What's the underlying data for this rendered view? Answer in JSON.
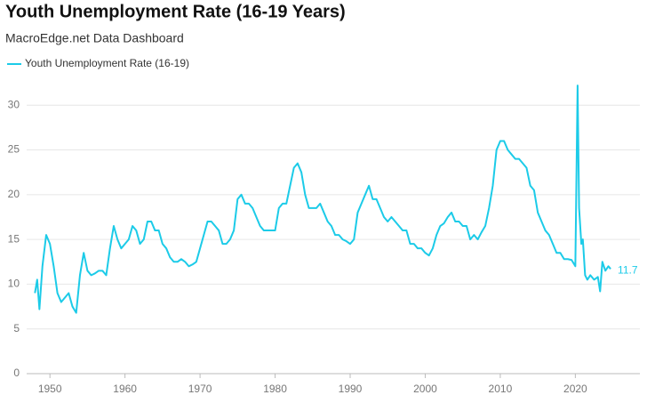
{
  "chart_data": {
    "type": "line",
    "title": "Youth Unemployment Rate (16-19 Years)",
    "subtitle": "MacroEdge.net Data Dashboard",
    "x": [
      1948.0,
      1948.3,
      1948.6,
      1949.0,
      1949.5,
      1950.0,
      1950.5,
      1951.0,
      1951.5,
      1952.0,
      1952.5,
      1953.0,
      1953.5,
      1954.0,
      1954.5,
      1955.0,
      1955.5,
      1956.0,
      1956.5,
      1957.0,
      1957.5,
      1958.0,
      1958.5,
      1959.0,
      1959.5,
      1960.0,
      1960.5,
      1961.0,
      1961.5,
      1962.0,
      1962.5,
      1963.0,
      1963.5,
      1964.0,
      1964.5,
      1965.0,
      1965.5,
      1966.0,
      1966.5,
      1967.0,
      1967.5,
      1968.0,
      1968.5,
      1969.0,
      1969.5,
      1970.0,
      1970.5,
      1971.0,
      1971.5,
      1972.0,
      1972.5,
      1973.0,
      1973.5,
      1974.0,
      1974.5,
      1975.0,
      1975.5,
      1976.0,
      1976.5,
      1977.0,
      1977.5,
      1978.0,
      1978.5,
      1979.0,
      1979.5,
      1980.0,
      1980.5,
      1981.0,
      1981.5,
      1982.0,
      1982.5,
      1983.0,
      1983.5,
      1984.0,
      1984.5,
      1985.0,
      1985.5,
      1986.0,
      1986.5,
      1987.0,
      1987.5,
      1988.0,
      1988.5,
      1989.0,
      1989.5,
      1990.0,
      1990.5,
      1991.0,
      1991.5,
      1992.0,
      1992.5,
      1993.0,
      1993.5,
      1994.0,
      1994.5,
      1995.0,
      1995.5,
      1996.0,
      1996.5,
      1997.0,
      1997.5,
      1998.0,
      1998.5,
      1999.0,
      1999.5,
      2000.0,
      2000.5,
      2001.0,
      2001.5,
      2002.0,
      2002.5,
      2003.0,
      2003.5,
      2004.0,
      2004.5,
      2005.0,
      2005.5,
      2006.0,
      2006.5,
      2007.0,
      2007.5,
      2008.0,
      2008.5,
      2009.0,
      2009.5,
      2010.0,
      2010.5,
      2011.0,
      2011.5,
      2012.0,
      2012.5,
      2013.0,
      2013.5,
      2014.0,
      2014.5,
      2015.0,
      2015.5,
      2016.0,
      2016.5,
      2017.0,
      2017.5,
      2018.0,
      2018.5,
      2019.0,
      2019.5,
      2020.0,
      2020.3,
      2020.5,
      2020.8,
      2021.0,
      2021.3,
      2021.6,
      2022.0,
      2022.5,
      2023.0,
      2023.3,
      2023.6,
      2024.0,
      2024.4,
      2024.7
    ],
    "series": [
      {
        "name": "Youth Unemployment Rate (16-19)",
        "color": "#1ccbe8",
        "values": [
          9,
          10.5,
          7.2,
          12,
          15.5,
          14.5,
          12,
          9,
          8,
          8.5,
          9,
          7.5,
          6.8,
          11,
          13.5,
          11.5,
          11,
          11.2,
          11.5,
          11.5,
          11,
          14,
          16.5,
          15,
          14,
          14.5,
          15,
          16.5,
          16,
          14.5,
          15,
          17,
          17,
          16,
          16,
          14.5,
          14,
          13,
          12.5,
          12.5,
          12.8,
          12.5,
          12,
          12.2,
          12.5,
          14,
          15.5,
          17,
          17,
          16.5,
          16,
          14.5,
          14.5,
          15,
          16,
          19.5,
          20,
          19,
          19,
          18.5,
          17.5,
          16.5,
          16,
          16,
          16,
          16,
          18.5,
          19,
          19,
          21,
          23,
          23.5,
          22.5,
          20,
          18.5,
          18.5,
          18.5,
          19,
          18,
          17,
          16.5,
          15.5,
          15.5,
          15,
          14.8,
          14.5,
          15,
          18,
          19,
          20,
          21,
          19.5,
          19.5,
          18.5,
          17.5,
          17,
          17.5,
          17,
          16.5,
          16,
          16,
          14.5,
          14.5,
          14,
          14,
          13.5,
          13.2,
          14,
          15.5,
          16.5,
          16.8,
          17.5,
          18,
          17,
          17,
          16.5,
          16.5,
          15,
          15.5,
          15,
          15.8,
          16.5,
          18.5,
          21,
          25,
          26,
          26,
          25,
          24.5,
          24,
          24,
          23.5,
          23,
          21,
          20.5,
          18,
          17,
          16,
          15.5,
          14.5,
          13.5,
          13.5,
          12.8,
          12.8,
          12.7,
          12,
          32.2,
          18.5,
          14.5,
          15,
          11,
          10.5,
          11,
          10.5,
          10.8,
          9.2,
          12.5,
          11.5,
          12,
          11.7
        ]
      }
    ],
    "xlim": [
      1946.9,
      2028.6
    ],
    "xticks": [
      1950,
      1960,
      1970,
      1980,
      1990,
      2000,
      2010,
      2020
    ],
    "ylim": [
      0,
      34
    ],
    "yticks": [
      0,
      5,
      10,
      15,
      20,
      25,
      30
    ],
    "grid": true,
    "legend": "top-left"
  }
}
